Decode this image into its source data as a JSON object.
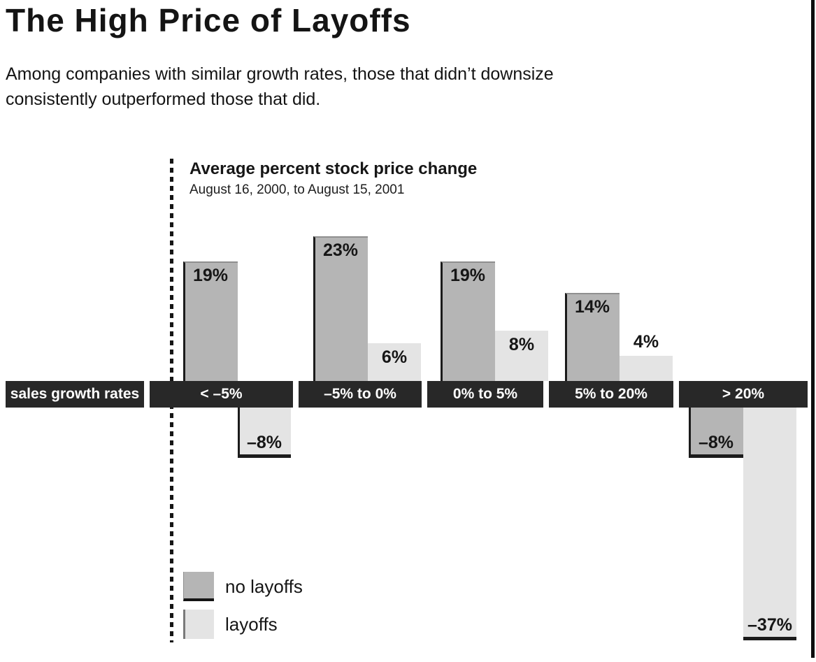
{
  "page": {
    "title": "The High Price of Layoffs",
    "subtitle": "Among companies with similar growth rates, those that didn’t downsize consistently outperformed those that did."
  },
  "chart_data": {
    "type": "bar",
    "title": "Average percent stock price change",
    "subtitle": "August 16, 2000, to August 15, 2001",
    "axis_band_label": "sales growth rates",
    "xlabel": "sales growth rates",
    "ylabel": "Average percent stock price change",
    "categories": [
      "< –5%",
      "–5% to 0%",
      "0% to 5%",
      "5% to 20%",
      "> 20%"
    ],
    "series": [
      {
        "name": "no layoffs",
        "color": "#b5b5b5",
        "values": [
          19,
          23,
          19,
          14,
          -8
        ]
      },
      {
        "name": "layoffs",
        "color": "#e4e4e4",
        "values": [
          -8,
          6,
          8,
          4,
          -37
        ]
      }
    ],
    "value_suffix": "%",
    "ylim": [
      -40,
      25
    ],
    "grid": false,
    "legend_position": "bottom-left"
  },
  "colors": {
    "band": "#282828",
    "no_layoffs_bar": "#b5b5b5",
    "layoffs_bar": "#e4e4e4",
    "text": "#161616",
    "frame_border": "#0d0d0d",
    "background": "#ffffff"
  }
}
